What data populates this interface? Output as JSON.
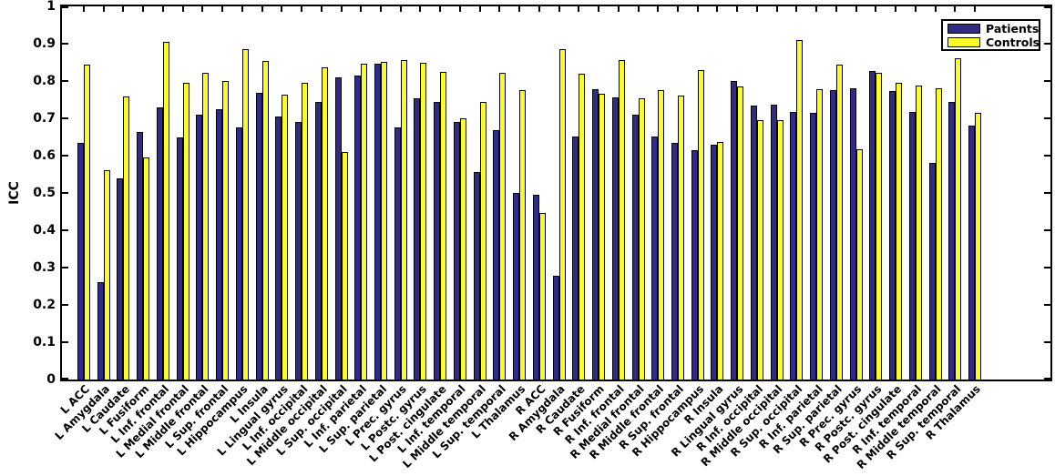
{
  "chart_data": {
    "type": "bar",
    "title": "",
    "xlabel": "",
    "ylabel": "ICC",
    "ylim": [
      0,
      1
    ],
    "grid": false,
    "legend_position": "top-right",
    "ytick_labels": [
      "0",
      "0.1",
      "0.2",
      "0.3",
      "0.4",
      "0.5",
      "0.6",
      "0.7",
      "0.8",
      "0.9",
      "1"
    ],
    "categories": [
      "L ACC",
      "L Amygdala",
      "L Caudate",
      "L Fusiform",
      "L Inf. frontal",
      "L Medial frontal",
      "L Middle frontal",
      "L Sup. frontal",
      "L Hippocampus",
      "L Insula",
      "L Lingual gyrus",
      "L Inf. occipital",
      "L Middle occipital",
      "L Sup. occipital",
      "L Inf. parietal",
      "L Sup. parietal",
      "L Prec. gyrus",
      "L Postc. gyrus",
      "L Post. cingulate",
      "L Inf. temporal",
      "L Middle temporal",
      "L Sup. temporal",
      "L Thalamus",
      "R ACC",
      "R Amygdala",
      "R Caudate",
      "R Fusiform",
      "R Inf. frontal",
      "R Medial frontal",
      "R Middle frontal",
      "R Sup. frontal",
      "R Hippocampus",
      "R Insula",
      "R Lingual gyrus",
      "R Inf. occipital",
      "R Middle occipital",
      "R Sup. occipital",
      "R Inf. parietal",
      "R Sup. parietal",
      "R Prec. gyrus",
      "R Postc. gyrus",
      "R Post. cingulate",
      "R Inf. temporal",
      "R Middle temporal",
      "R Sup. temporal",
      "R Thalamus"
    ],
    "series": [
      {
        "name": "Patients",
        "color": "#312A87",
        "values": [
          0.635,
          0.26,
          0.54,
          0.663,
          0.729,
          0.649,
          0.71,
          0.724,
          0.676,
          0.768,
          0.705,
          0.69,
          0.745,
          0.81,
          0.815,
          0.846,
          0.675,
          0.754,
          0.743,
          0.69,
          0.556,
          0.668,
          0.5,
          0.496,
          0.278,
          0.65,
          0.777,
          0.755,
          0.71,
          0.65,
          0.635,
          0.615,
          0.629,
          0.8,
          0.735,
          0.736,
          0.718,
          0.715,
          0.776,
          0.78,
          0.827,
          0.772,
          0.717,
          0.58,
          0.745,
          0.68
        ]
      },
      {
        "name": "Controls",
        "color": "#FBFB29",
        "values": [
          0.844,
          0.561,
          0.758,
          0.594,
          0.904,
          0.796,
          0.823,
          0.801,
          0.885,
          0.854,
          0.764,
          0.795,
          0.836,
          0.609,
          0.846,
          0.852,
          0.855,
          0.849,
          0.825,
          0.701,
          0.745,
          0.822,
          0.776,
          0.446,
          0.885,
          0.82,
          0.766,
          0.855,
          0.754,
          0.776,
          0.762,
          0.83,
          0.636,
          0.785,
          0.695,
          0.695,
          0.91,
          0.779,
          0.845,
          0.616,
          0.822,
          0.795,
          0.789,
          0.781,
          0.861,
          0.714
        ]
      }
    ],
    "bar_edge_color": "#000000",
    "background_color": "#ffffff"
  }
}
